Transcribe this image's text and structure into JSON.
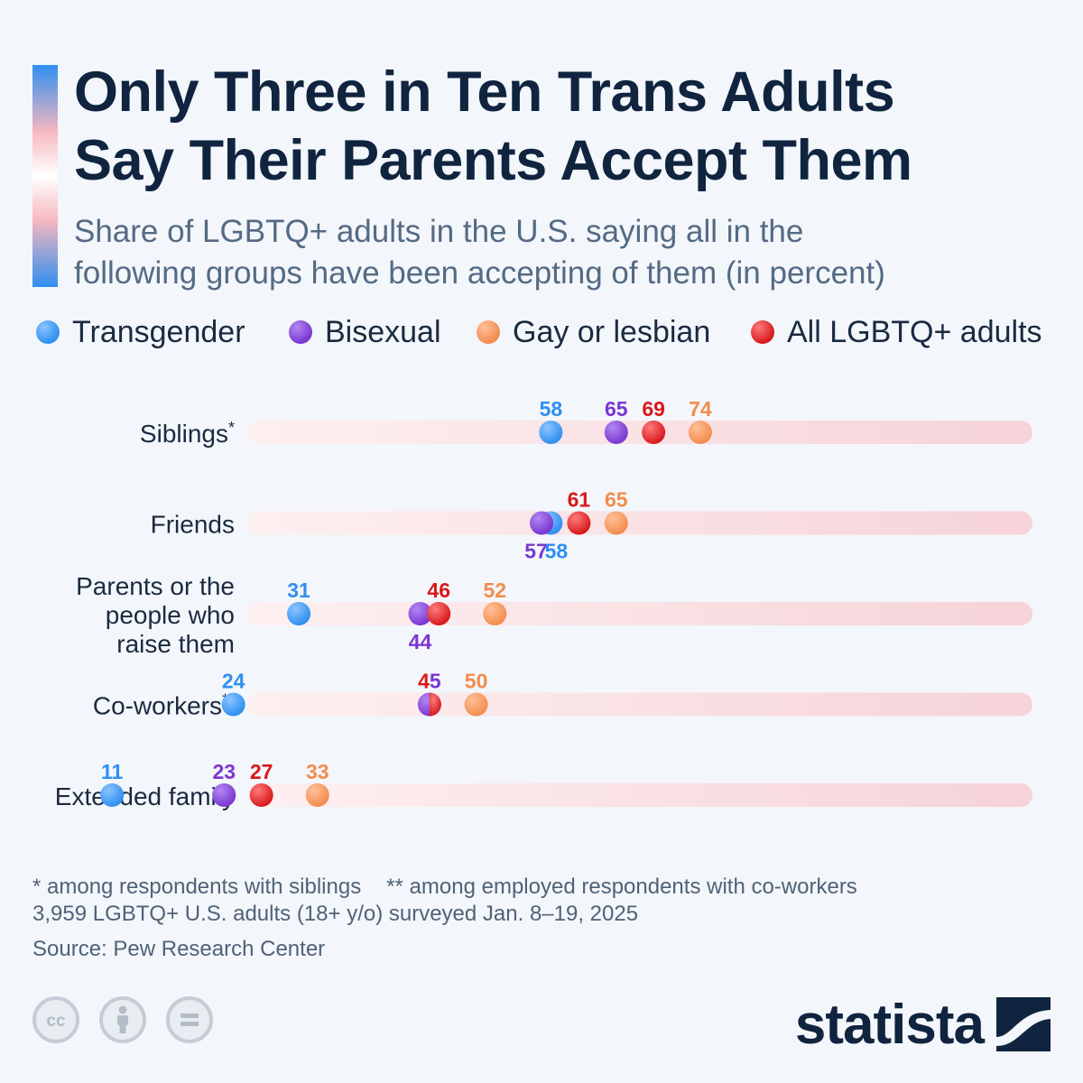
{
  "title_lines": [
    "Only Three in Ten Trans Adults",
    "Say Their Parents Accept Them"
  ],
  "subtitle_lines": [
    "Share of LGBTQ+ adults in the U.S. saying all in the",
    "following groups have been accepting of them (in percent)"
  ],
  "legend": [
    {
      "label": "Transgender",
      "color": "#2f8ff0"
    },
    {
      "label": "Bisexual",
      "color": "#7b36d2"
    },
    {
      "label": "Gay or lesbian",
      "color": "#f28c4d"
    },
    {
      "label": "All LGBTQ+ adults",
      "color": "#d7191c"
    }
  ],
  "chart_data": {
    "type": "dot",
    "xlim": [
      0,
      100
    ],
    "categories": [
      {
        "label": [
          "Siblings"
        ],
        "mark": "*"
      },
      {
        "label": [
          "Friends"
        ],
        "mark": ""
      },
      {
        "label": [
          "Parents or the",
          "people who",
          "raise them"
        ],
        "mark": ""
      },
      {
        "label": [
          "Co-workers"
        ],
        "mark": "**"
      },
      {
        "label": [
          "Extended family"
        ],
        "mark": ""
      }
    ],
    "series": [
      {
        "name": "Transgender",
        "color": "#2f8ff0",
        "values": [
          58,
          58,
          31,
          24,
          11
        ]
      },
      {
        "name": "Bisexual",
        "color": "#7b36d2",
        "values": [
          65,
          57,
          44,
          45,
          23
        ]
      },
      {
        "name": "Gay or lesbian",
        "color": "#f28c4d",
        "values": [
          74,
          65,
          52,
          50,
          33
        ]
      },
      {
        "name": "All LGBTQ+ adults",
        "color": "#d7191c",
        "values": [
          69,
          61,
          46,
          45,
          27
        ]
      }
    ]
  },
  "footnotes": {
    "siblings": "* among respondents with siblings",
    "coworkers": "** among employed respondents with co-workers",
    "survey": "3,959 LGBTQ+ U.S. adults (18+ y/o) surveyed Jan. 8–19, 2025"
  },
  "source": "Source: Pew Research Center",
  "brand": "statista",
  "license_icons": [
    "cc-icon",
    "attribution-icon",
    "no-derivatives-icon"
  ]
}
